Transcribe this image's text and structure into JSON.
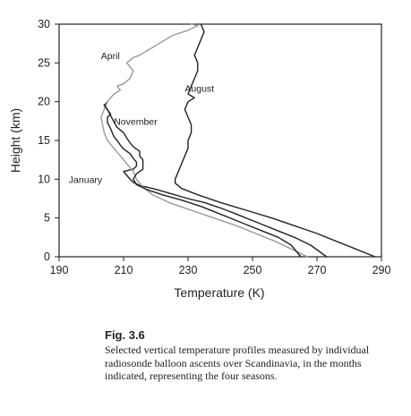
{
  "chart_data": {
    "type": "line",
    "xlabel": "Temperature (K)",
    "ylabel": "Height (km)",
    "xlim": [
      190,
      290
    ],
    "ylim": [
      0,
      30
    ],
    "xticks": [
      190,
      210,
      230,
      250,
      270,
      290
    ],
    "yticks": [
      0,
      5,
      10,
      15,
      20,
      25,
      30
    ],
    "grid": false,
    "legend": "inline labels",
    "series": [
      {
        "name": "January",
        "color": "#222222",
        "x": [
          273,
          268,
          263,
          257,
          251,
          245,
          240,
          235,
          230,
          225,
          220,
          215,
          213,
          212,
          211,
          210,
          213,
          214,
          214,
          213,
          212,
          210,
          209,
          208,
          207,
          206,
          205,
          205,
          206,
          204,
          205
        ],
        "y": [
          0,
          1.5,
          2.5,
          3.5,
          4.5,
          5.5,
          6.3,
          7,
          7.5,
          8.1,
          8.7,
          9.2,
          9.6,
          10,
          10.5,
          11,
          11.3,
          11.7,
          12.2,
          12.7,
          13.3,
          13.9,
          14.4,
          15,
          15.5,
          16.5,
          17.3,
          18,
          18.4,
          19.5,
          20
        ]
      },
      {
        "name": "April",
        "color": "#999999",
        "x": [
          267,
          262,
          257,
          251,
          245,
          238,
          231,
          224,
          219,
          216,
          215,
          214,
          213,
          211,
          209,
          207,
          205,
          204,
          203,
          205,
          207,
          209,
          208,
          210,
          212,
          213,
          211,
          213,
          215,
          217,
          219,
          221,
          223,
          225,
          227,
          230,
          233,
          231
        ],
        "y": [
          0,
          1,
          2,
          3,
          4,
          5,
          6,
          7,
          8,
          9,
          9.5,
          10,
          11,
          12,
          13,
          14,
          15,
          16,
          18,
          20,
          21,
          21.5,
          22,
          22.3,
          23,
          24,
          25,
          25.7,
          26,
          26.5,
          27,
          27.5,
          28,
          28.5,
          28.8,
          29.2,
          29.8,
          30
        ]
      },
      {
        "name": "November",
        "color": "#222222",
        "x": [
          265,
          262,
          258,
          252,
          246,
          240,
          234,
          228,
          222,
          217,
          214,
          213,
          214,
          216,
          216,
          216,
          215,
          215,
          213,
          212,
          211,
          210,
          208,
          207,
          206,
          205,
          204
        ],
        "y": [
          0,
          1.5,
          2.5,
          3.5,
          4.5,
          5.5,
          6.5,
          7.3,
          8,
          8.7,
          9.3,
          10,
          10.7,
          11.3,
          12,
          12.5,
          13,
          13.6,
          14.2,
          14.7,
          15.3,
          16,
          16.7,
          17.4,
          18.2,
          19,
          19.6
        ]
      },
      {
        "name": "August",
        "color": "#222222",
        "x": [
          288,
          282,
          276,
          270,
          263,
          256,
          248,
          240,
          233,
          228,
          226,
          226,
          227,
          228,
          229,
          230,
          230,
          231,
          231,
          230,
          229,
          230,
          232,
          230,
          231,
          232,
          233,
          233,
          232,
          233,
          234,
          235,
          234
        ],
        "y": [
          0,
          1,
          2,
          3,
          4,
          5,
          6,
          7,
          8,
          8.8,
          9.5,
          10,
          11,
          12,
          13,
          14,
          15,
          16,
          17,
          18,
          19,
          20,
          20.5,
          21,
          22,
          23,
          24,
          25,
          26,
          27,
          28,
          29,
          30
        ]
      }
    ],
    "annotations": [
      {
        "text": "April",
        "x": 203,
        "y": 25.5
      },
      {
        "text": "August",
        "x": 229,
        "y": 21.3
      },
      {
        "text": "November",
        "x": 207,
        "y": 17
      },
      {
        "text": "January",
        "x": 193,
        "y": 9.5
      }
    ]
  },
  "caption": {
    "label": "Fig. 3.6",
    "text": "Selected vertical temperature profiles measured by individual radiosonde balloon ascents over Scandinavia, in the months indicated, representing the four seasons."
  }
}
